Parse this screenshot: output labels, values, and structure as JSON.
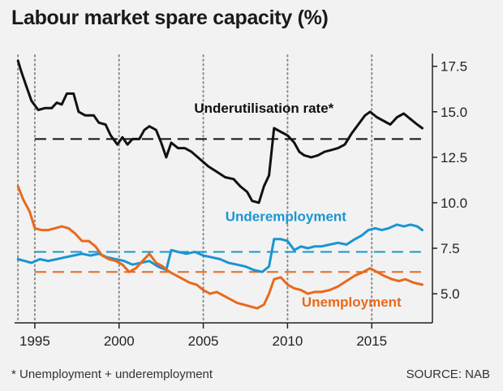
{
  "title": "Labour market spare capacity (%)",
  "footnote": "* Unemployment + underemployment",
  "source": "SOURCE: NAB",
  "chart_data": {
    "type": "line",
    "title": "Labour market spare capacity (%)",
    "xlim": [
      1993.8,
      2018.6
    ],
    "ylim": [
      3.4,
      18.2
    ],
    "x_ticks": [
      1995,
      2000,
      2005,
      2010,
      2015
    ],
    "y_ticks": [
      5.0,
      7.5,
      10.0,
      12.5,
      15.0,
      17.5
    ],
    "y_axis_position": "right",
    "vertical_dotted_gridlines": [
      1994,
      1995,
      2000,
      2005,
      2010,
      2015
    ],
    "series": [
      {
        "name": "Underutilisation rate*",
        "color": "#111111",
        "average": 13.5,
        "points": [
          [
            1994.0,
            17.8
          ],
          [
            1994.2,
            17.2
          ],
          [
            1994.5,
            16.4
          ],
          [
            1994.8,
            15.6
          ],
          [
            1995.2,
            15.1
          ],
          [
            1995.6,
            15.2
          ],
          [
            1996.0,
            15.2
          ],
          [
            1996.3,
            15.5
          ],
          [
            1996.6,
            15.4
          ],
          [
            1996.9,
            16.0
          ],
          [
            1997.3,
            16.0
          ],
          [
            1997.6,
            15.0
          ],
          [
            1998.0,
            14.8
          ],
          [
            1998.5,
            14.8
          ],
          [
            1998.8,
            14.4
          ],
          [
            1999.2,
            14.3
          ],
          [
            1999.5,
            13.7
          ],
          [
            1999.9,
            13.2
          ],
          [
            2000.2,
            13.6
          ],
          [
            2000.5,
            13.2
          ],
          [
            2000.8,
            13.5
          ],
          [
            2001.2,
            13.5
          ],
          [
            2001.5,
            14.0
          ],
          [
            2001.8,
            14.2
          ],
          [
            2002.2,
            14.0
          ],
          [
            2002.5,
            13.3
          ],
          [
            2002.8,
            12.5
          ],
          [
            2003.1,
            13.3
          ],
          [
            2003.5,
            13.0
          ],
          [
            2003.9,
            13.0
          ],
          [
            2004.3,
            12.8
          ],
          [
            2004.8,
            12.4
          ],
          [
            2005.3,
            12.0
          ],
          [
            2005.8,
            11.7
          ],
          [
            2006.3,
            11.4
          ],
          [
            2006.8,
            11.3
          ],
          [
            2007.2,
            10.9
          ],
          [
            2007.6,
            10.6
          ],
          [
            2007.9,
            10.1
          ],
          [
            2008.3,
            10.0
          ],
          [
            2008.6,
            10.9
          ],
          [
            2008.9,
            11.5
          ],
          [
            2009.2,
            14.1
          ],
          [
            2009.6,
            13.9
          ],
          [
            2010.0,
            13.7
          ],
          [
            2010.4,
            13.3
          ],
          [
            2010.7,
            12.8
          ],
          [
            2011.0,
            12.6
          ],
          [
            2011.4,
            12.5
          ],
          [
            2011.8,
            12.6
          ],
          [
            2012.2,
            12.8
          ],
          [
            2012.6,
            12.9
          ],
          [
            2013.0,
            13.0
          ],
          [
            2013.4,
            13.2
          ],
          [
            2013.8,
            13.8
          ],
          [
            2014.2,
            14.3
          ],
          [
            2014.6,
            14.8
          ],
          [
            2014.9,
            15.0
          ],
          [
            2015.3,
            14.7
          ],
          [
            2015.7,
            14.5
          ],
          [
            2016.1,
            14.3
          ],
          [
            2016.5,
            14.7
          ],
          [
            2016.9,
            14.9
          ],
          [
            2017.3,
            14.6
          ],
          [
            2017.7,
            14.3
          ],
          [
            2018.0,
            14.1
          ]
        ]
      },
      {
        "name": "Underemployment",
        "color": "#1a95d3",
        "average": 7.3,
        "points": [
          [
            1994.0,
            6.9
          ],
          [
            1994.4,
            6.8
          ],
          [
            1994.8,
            6.7
          ],
          [
            1995.3,
            6.9
          ],
          [
            1995.8,
            6.8
          ],
          [
            1996.3,
            6.9
          ],
          [
            1996.8,
            7.0
          ],
          [
            1997.3,
            7.1
          ],
          [
            1997.8,
            7.2
          ],
          [
            1998.3,
            7.1
          ],
          [
            1998.8,
            7.2
          ],
          [
            1999.3,
            7.0
          ],
          [
            1999.8,
            6.9
          ],
          [
            2000.3,
            6.8
          ],
          [
            2000.8,
            6.6
          ],
          [
            2001.3,
            6.7
          ],
          [
            2001.8,
            6.8
          ],
          [
            2002.3,
            6.5
          ],
          [
            2002.8,
            6.3
          ],
          [
            2003.1,
            7.4
          ],
          [
            2003.5,
            7.3
          ],
          [
            2004.0,
            7.2
          ],
          [
            2004.5,
            7.3
          ],
          [
            2005.0,
            7.1
          ],
          [
            2005.5,
            7.0
          ],
          [
            2006.0,
            6.9
          ],
          [
            2006.5,
            6.7
          ],
          [
            2007.0,
            6.6
          ],
          [
            2007.5,
            6.5
          ],
          [
            2008.0,
            6.3
          ],
          [
            2008.5,
            6.2
          ],
          [
            2008.9,
            6.5
          ],
          [
            2009.2,
            8.0
          ],
          [
            2009.6,
            8.0
          ],
          [
            2010.0,
            7.9
          ],
          [
            2010.4,
            7.4
          ],
          [
            2010.8,
            7.6
          ],
          [
            2011.2,
            7.5
          ],
          [
            2011.6,
            7.6
          ],
          [
            2012.0,
            7.6
          ],
          [
            2012.5,
            7.7
          ],
          [
            2013.0,
            7.8
          ],
          [
            2013.5,
            7.7
          ],
          [
            2014.0,
            8.0
          ],
          [
            2014.4,
            8.2
          ],
          [
            2014.8,
            8.5
          ],
          [
            2015.2,
            8.6
          ],
          [
            2015.6,
            8.5
          ],
          [
            2016.0,
            8.6
          ],
          [
            2016.5,
            8.8
          ],
          [
            2016.9,
            8.7
          ],
          [
            2017.3,
            8.8
          ],
          [
            2017.7,
            8.7
          ],
          [
            2018.0,
            8.5
          ]
        ]
      },
      {
        "name": "Unemployment",
        "color": "#e8691c",
        "average": 6.2,
        "points": [
          [
            1994.0,
            10.9
          ],
          [
            1994.3,
            10.2
          ],
          [
            1994.7,
            9.5
          ],
          [
            1995.0,
            8.6
          ],
          [
            1995.4,
            8.5
          ],
          [
            1995.8,
            8.5
          ],
          [
            1996.2,
            8.6
          ],
          [
            1996.6,
            8.7
          ],
          [
            1997.0,
            8.6
          ],
          [
            1997.4,
            8.3
          ],
          [
            1997.8,
            7.9
          ],
          [
            1998.2,
            7.9
          ],
          [
            1998.6,
            7.6
          ],
          [
            1999.0,
            7.1
          ],
          [
            1999.4,
            6.9
          ],
          [
            1999.8,
            6.8
          ],
          [
            2000.2,
            6.6
          ],
          [
            2000.6,
            6.2
          ],
          [
            2001.0,
            6.4
          ],
          [
            2001.4,
            6.8
          ],
          [
            2001.8,
            7.2
          ],
          [
            2002.2,
            6.7
          ],
          [
            2002.6,
            6.5
          ],
          [
            2003.0,
            6.2
          ],
          [
            2003.4,
            6.0
          ],
          [
            2003.8,
            5.8
          ],
          [
            2004.2,
            5.6
          ],
          [
            2004.6,
            5.5
          ],
          [
            2005.0,
            5.2
          ],
          [
            2005.4,
            5.0
          ],
          [
            2005.8,
            5.1
          ],
          [
            2006.2,
            4.9
          ],
          [
            2006.6,
            4.7
          ],
          [
            2007.0,
            4.5
          ],
          [
            2007.4,
            4.4
          ],
          [
            2007.8,
            4.3
          ],
          [
            2008.2,
            4.2
          ],
          [
            2008.6,
            4.4
          ],
          [
            2008.9,
            5.0
          ],
          [
            2009.2,
            5.8
          ],
          [
            2009.6,
            5.9
          ],
          [
            2010.0,
            5.5
          ],
          [
            2010.4,
            5.3
          ],
          [
            2010.8,
            5.2
          ],
          [
            2011.2,
            5.0
          ],
          [
            2011.6,
            5.1
          ],
          [
            2012.0,
            5.1
          ],
          [
            2012.5,
            5.2
          ],
          [
            2013.0,
            5.4
          ],
          [
            2013.5,
            5.7
          ],
          [
            2014.0,
            6.0
          ],
          [
            2014.5,
            6.2
          ],
          [
            2014.9,
            6.4
          ],
          [
            2015.3,
            6.2
          ],
          [
            2015.7,
            6.0
          ],
          [
            2016.2,
            5.8
          ],
          [
            2016.6,
            5.7
          ],
          [
            2017.0,
            5.8
          ],
          [
            2017.5,
            5.6
          ],
          [
            2018.0,
            5.5
          ]
        ]
      }
    ]
  }
}
